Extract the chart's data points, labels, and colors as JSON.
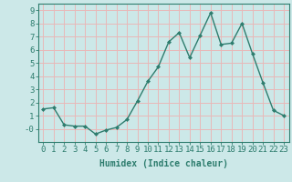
{
  "x": [
    0,
    1,
    2,
    3,
    4,
    5,
    6,
    7,
    8,
    9,
    10,
    11,
    12,
    13,
    14,
    15,
    16,
    17,
    18,
    19,
    20,
    21,
    22,
    23
  ],
  "y": [
    1.5,
    1.6,
    0.3,
    0.2,
    0.2,
    -0.4,
    -0.1,
    0.1,
    0.7,
    2.1,
    3.6,
    4.7,
    6.6,
    7.3,
    5.4,
    7.1,
    8.8,
    6.4,
    6.5,
    8.0,
    5.7,
    3.5,
    1.4,
    1.0
  ],
  "xlabel": "Humidex (Indice chaleur)",
  "xlim": [
    -0.5,
    23.5
  ],
  "ylim": [
    -1.0,
    9.5
  ],
  "yticks": [
    0,
    1,
    2,
    3,
    4,
    5,
    6,
    7,
    8,
    9
  ],
  "xticks": [
    0,
    1,
    2,
    3,
    4,
    5,
    6,
    7,
    8,
    9,
    10,
    11,
    12,
    13,
    14,
    15,
    16,
    17,
    18,
    19,
    20,
    21,
    22,
    23
  ],
  "line_color": "#2e7d6e",
  "marker": "D",
  "marker_size": 2.0,
  "line_width": 1.0,
  "bg_color": "#cce8e8",
  "grid_color": "#e8b8b8",
  "axis_label_fontsize": 7,
  "tick_fontsize": 6.5
}
